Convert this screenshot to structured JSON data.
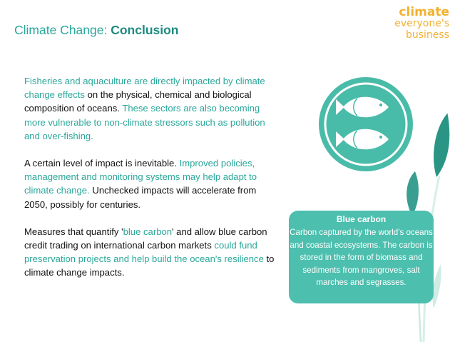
{
  "header": {
    "title_prefix": "Climate Change: ",
    "title_bold": "Conclusion"
  },
  "logo": {
    "line1": "climate",
    "line2": "everyone's",
    "line3": "business"
  },
  "body": {
    "p1": [
      {
        "text": "Fisheries and aquaculture are directly impacted by climate change effects",
        "hl": true
      },
      {
        "text": " on the physical, chemical and biological composition of oceans. ",
        "hl": false
      },
      {
        "text": "These sectors are also becoming more vulnerable to non-climate stressors such as pollution and over-fishing.",
        "hl": true
      }
    ],
    "p2": [
      {
        "text": "A certain level of impact is inevitable. ",
        "hl": false
      },
      {
        "text": "Improved policies, management and monitoring systems may help adapt to climate change.",
        "hl": true
      },
      {
        "text": " Unchecked impacts will accelerate from 2050, possibly for centuries.",
        "hl": false
      }
    ],
    "p3": [
      {
        "text": "Measures that quantify '",
        "hl": false
      },
      {
        "text": "blue carbon",
        "hl": true
      },
      {
        "text": "' and allow blue carbon credit trading on international carbon markets ",
        "hl": false
      },
      {
        "text": "could fund preservation projects and help build the ocean's resilience",
        "hl": true
      },
      {
        "text": " to climate change impacts.",
        "hl": false
      }
    ]
  },
  "card": {
    "title": "Blue carbon",
    "text": "Carbon captured by the world's oceans and coastal ecosystems. The carbon is stored in the form of biomass and sediments from mangroves, salt marches and segrasses."
  },
  "colors": {
    "teal": "#2aa79a",
    "teal_light": "#4dbfae",
    "logo_yellow": "#f2b130"
  },
  "icons": [
    "fish-icon",
    "leaf-icon"
  ]
}
